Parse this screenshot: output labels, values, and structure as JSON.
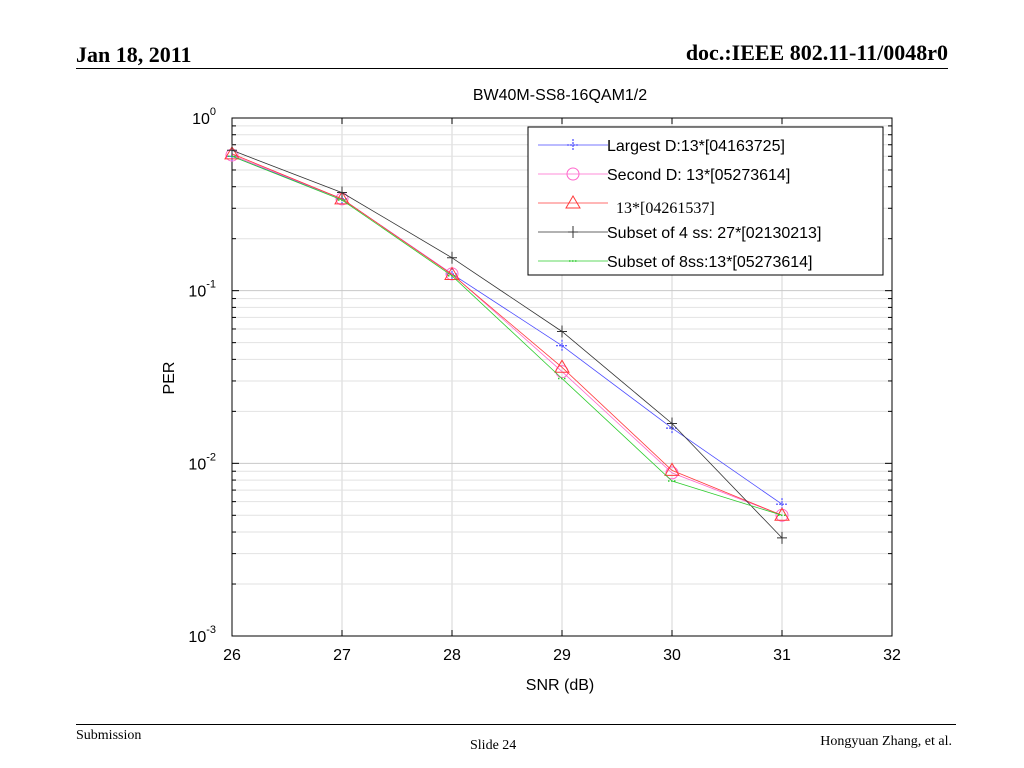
{
  "slide": {
    "date": "Jan 18, 2011",
    "doc_id": "doc.:IEEE 802.11-11/0048r0",
    "footer_left": "Submission",
    "footer_center": "Slide 24",
    "footer_right": "Hongyuan Zhang, et al."
  },
  "chart_data": {
    "type": "line",
    "title": "BW40M-SS8-16QAM1/2",
    "xlabel": "SNR (dB)",
    "ylabel": "PER",
    "xlim": [
      26,
      32
    ],
    "ylim": [
      0.001,
      1
    ],
    "yscale": "log",
    "grid": true,
    "legend_position": "top-right",
    "x_ticks": [
      "26",
      "27",
      "28",
      "29",
      "30",
      "31",
      "32"
    ],
    "y_ticks": [
      {
        "base": "10",
        "exp": "0",
        "value": 1
      },
      {
        "base": "10",
        "exp": "-1",
        "value": 0.1
      },
      {
        "base": "10",
        "exp": "-2",
        "value": 0.01
      },
      {
        "base": "10",
        "exp": "-3",
        "value": 0.001
      }
    ],
    "series": [
      {
        "name": "Largest D:13*[04163725]",
        "color": "#4a4aff",
        "marker": "plus-dot",
        "x": [
          26,
          27,
          28,
          29,
          30,
          31
        ],
        "y": [
          0.6,
          0.34,
          0.125,
          0.048,
          0.016,
          0.0058
        ]
      },
      {
        "name": "Second D: 13*[05273614]",
        "color": "#ff66cc",
        "marker": "circle",
        "x": [
          26,
          27,
          28,
          29,
          30,
          31
        ],
        "y": [
          0.61,
          0.34,
          0.125,
          0.034,
          0.0088,
          0.005
        ]
      },
      {
        "name": "13*[04261537]",
        "color": "#ff3b3b",
        "marker": "triangle",
        "x": [
          26,
          27,
          28,
          29,
          30,
          31
        ],
        "y": [
          0.62,
          0.34,
          0.124,
          0.036,
          0.0091,
          0.005
        ]
      },
      {
        "name": "Subset of 4 ss: 27*[02130213]",
        "color": "#333333",
        "marker": "plus",
        "x": [
          26,
          27,
          28,
          29,
          30,
          31
        ],
        "y": [
          0.65,
          0.37,
          0.155,
          0.058,
          0.017,
          0.0037
        ]
      },
      {
        "name": "Subset of 8ss:13*[05273614]",
        "color": "#2ecc2e",
        "marker": "dot",
        "x": [
          26,
          27,
          28,
          29,
          30,
          31
        ],
        "y": [
          0.6,
          0.335,
          0.122,
          0.031,
          0.0079,
          0.005
        ]
      }
    ]
  }
}
